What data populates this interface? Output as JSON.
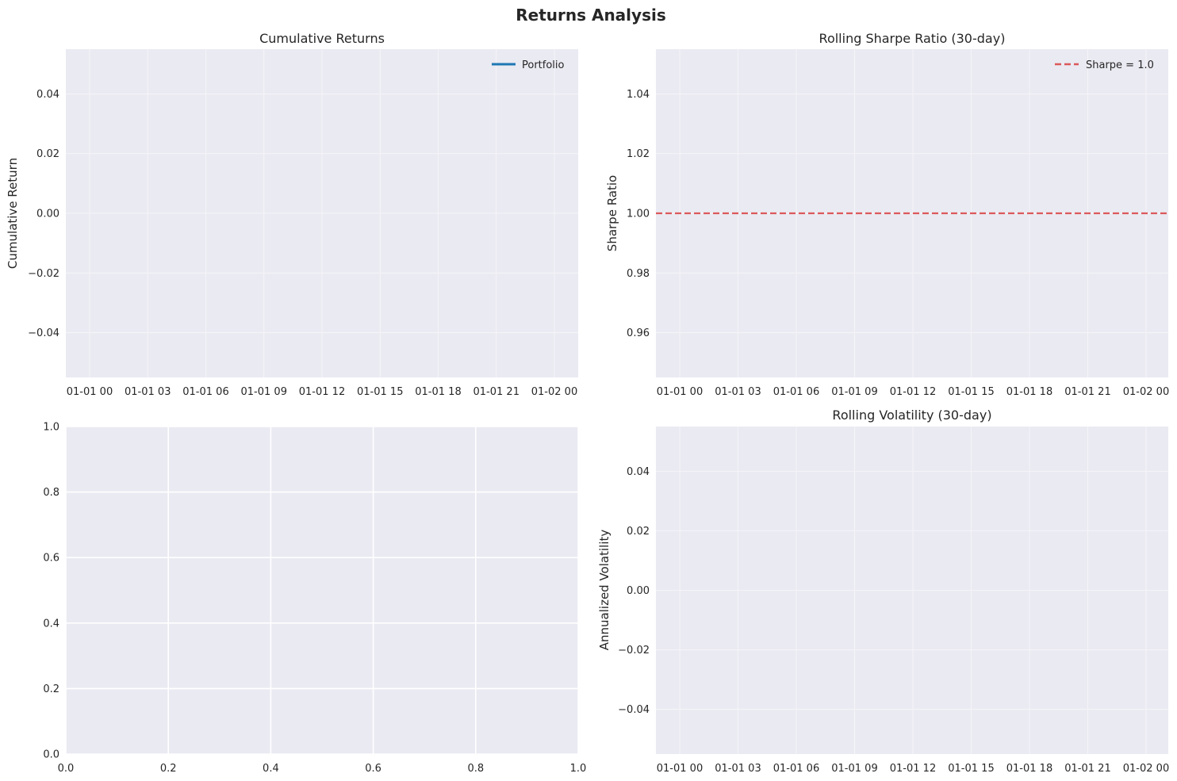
{
  "figure": {
    "title": "Returns Analysis"
  },
  "chart_data": [
    {
      "type": "line",
      "title": "Cumulative Returns",
      "xlabel": "",
      "ylabel": "Cumulative Return",
      "x_ticks": [
        "01-01 00",
        "01-01 03",
        "01-01 06",
        "01-01 09",
        "01-01 12",
        "01-01 15",
        "01-01 18",
        "01-01 21",
        "01-02 00"
      ],
      "y_ticks": [
        "−0.04",
        "−0.02",
        "0.00",
        "0.02",
        "0.04"
      ],
      "y_tick_values": [
        -0.04,
        -0.02,
        0.0,
        0.02,
        0.04
      ],
      "ylim": [
        -0.055,
        0.055
      ],
      "series": [
        {
          "name": "Portfolio",
          "color": "#1f77b4",
          "style": "solid",
          "values": []
        }
      ],
      "legend": "top-right",
      "grid": true
    },
    {
      "type": "line",
      "title": "Rolling Sharpe Ratio (30-day)",
      "xlabel": "",
      "ylabel": "Sharpe Ratio",
      "x_ticks": [
        "01-01 00",
        "01-01 03",
        "01-01 06",
        "01-01 09",
        "01-01 12",
        "01-01 15",
        "01-01 18",
        "01-01 21",
        "01-02 00"
      ],
      "y_ticks": [
        "0.96",
        "0.98",
        "1.00",
        "1.02",
        "1.04"
      ],
      "y_tick_values": [
        0.96,
        0.98,
        1.0,
        1.02,
        1.04
      ],
      "ylim": [
        0.945,
        1.055
      ],
      "series": [
        {
          "name": "Sharpe = 1.0",
          "color": "#d62728",
          "style": "dashed",
          "values": [
            1.0
          ]
        }
      ],
      "reference_line": 1.0,
      "legend": "top-right",
      "grid": true
    },
    {
      "type": "line",
      "title": "",
      "xlabel": "",
      "ylabel": "",
      "x_ticks": [
        "0.0",
        "0.2",
        "0.4",
        "0.6",
        "0.8",
        "1.0"
      ],
      "x_tick_values": [
        0.0,
        0.2,
        0.4,
        0.6,
        0.8,
        1.0
      ],
      "y_ticks": [
        "0.0",
        "0.2",
        "0.4",
        "0.6",
        "0.8",
        "1.0"
      ],
      "y_tick_values": [
        0.0,
        0.2,
        0.4,
        0.6,
        0.8,
        1.0
      ],
      "xlim": [
        0,
        1
      ],
      "ylim": [
        0,
        1
      ],
      "series": [],
      "grid": true
    },
    {
      "type": "line",
      "title": "Rolling Volatility (30-day)",
      "xlabel": "",
      "ylabel": "Annualized Volatility",
      "x_ticks": [
        "01-01 00",
        "01-01 03",
        "01-01 06",
        "01-01 09",
        "01-01 12",
        "01-01 15",
        "01-01 18",
        "01-01 21",
        "01-02 00"
      ],
      "y_ticks": [
        "−0.04",
        "−0.02",
        "0.00",
        "0.02",
        "0.04"
      ],
      "y_tick_values": [
        -0.04,
        -0.02,
        0.0,
        0.02,
        0.04
      ],
      "ylim": [
        -0.055,
        0.055
      ],
      "series": [],
      "grid": true
    }
  ]
}
